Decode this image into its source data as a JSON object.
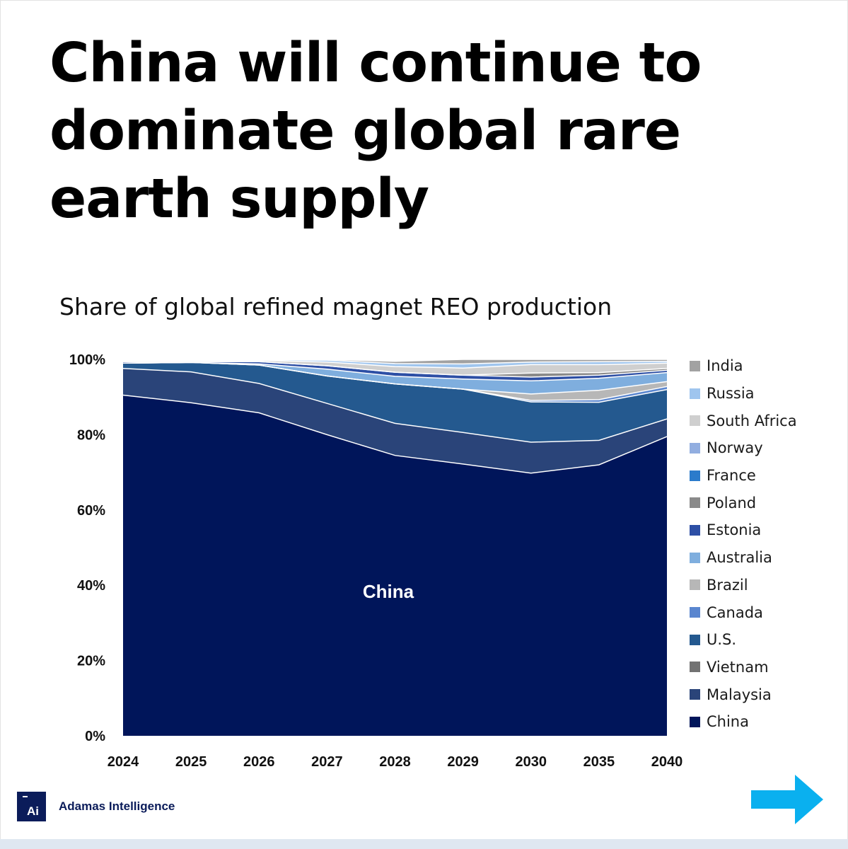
{
  "headline": "China will continue to dominate global rare earth supply",
  "colors": {
    "China": "#00155a",
    "Malaysia": "#2a4479",
    "Vietnam": "#727272",
    "U.S.": "#24598f",
    "Canada": "#5a86cf",
    "Brazil": "#b7b7b7",
    "Australia": "#7faede",
    "Estonia": "#2d4fa5",
    "Poland": "#8a8a8a",
    "France": "#2b7bcb",
    "Norway": "#92aee0",
    "South Africa": "#cfcfcf",
    "Russia": "#9fc5ee",
    "India": "#a2a2a2",
    "arrow": "#0ab0ef",
    "logo": "#0b1c5a"
  },
  "chart_data": {
    "type": "area",
    "stacked": true,
    "percent": true,
    "title": "Share of global refined magnet REO production",
    "xlabel": "",
    "ylabel": "",
    "ylim": [
      0,
      100
    ],
    "yticks": [
      "0%",
      "20%",
      "40%",
      "60%",
      "80%",
      "100%"
    ],
    "grid": false,
    "legend_position": "right",
    "categories": [
      "2024",
      "2025",
      "2026",
      "2027",
      "2028",
      "2029",
      "2030",
      "2035",
      "2040"
    ],
    "annotation": "China",
    "series": [
      {
        "name": "China",
        "values": [
          90.5,
          88.5,
          85.8,
          80.0,
          74.5,
          72.2,
          69.8,
          72.0,
          79.5
        ]
      },
      {
        "name": "Malaysia",
        "values": [
          7.1,
          8.2,
          7.8,
          8.3,
          8.5,
          8.4,
          8.2,
          6.5,
          4.7
        ]
      },
      {
        "name": "Vietnam",
        "values": [
          0,
          0,
          0,
          0,
          0,
          0,
          0,
          0,
          0
        ]
      },
      {
        "name": "U.S.",
        "values": [
          1.4,
          2.5,
          4.9,
          7.3,
          10.5,
          11.5,
          10.7,
          10.1,
          7.8
        ]
      },
      {
        "name": "Canada",
        "values": [
          0,
          0,
          0,
          0,
          0,
          0,
          0.4,
          0.7,
          0.8
        ]
      },
      {
        "name": "Brazil",
        "values": [
          0,
          0,
          0,
          0,
          0,
          0,
          1.7,
          2.5,
          1.3
        ]
      },
      {
        "name": "Australia",
        "values": [
          0,
          0,
          0.3,
          1.8,
          2.0,
          2.7,
          3.5,
          3.2,
          2.4
        ]
      },
      {
        "name": "Estonia",
        "values": [
          0.4,
          0.2,
          0.6,
          0.9,
          1.1,
          1.0,
          1.0,
          0.8,
          0.6
        ]
      },
      {
        "name": "Poland",
        "values": [
          0,
          0,
          0,
          0,
          0,
          0,
          1.1,
          0.7,
          0.5
        ]
      },
      {
        "name": "France",
        "values": [
          0,
          0,
          0,
          0,
          0,
          0,
          0,
          0,
          0
        ]
      },
      {
        "name": "Norway",
        "values": [
          0,
          0,
          0,
          0,
          0,
          0,
          0,
          0,
          0
        ]
      },
      {
        "name": "South Africa",
        "values": [
          0.3,
          0.3,
          0.3,
          1.0,
          1.5,
          1.9,
          2.2,
          2.1,
          1.4
        ]
      },
      {
        "name": "Russia",
        "values": [
          0.2,
          0.2,
          0.2,
          0.5,
          0.8,
          1.1,
          0.7,
          0.8,
          0.5
        ]
      },
      {
        "name": "India",
        "values": [
          0.1,
          0.1,
          0.1,
          0.2,
          0.6,
          1.2,
          0.7,
          0.6,
          0.5
        ]
      }
    ]
  },
  "legend": [
    "India",
    "Russia",
    "South Africa",
    "Norway",
    "France",
    "Poland",
    "Estonia",
    "Australia",
    "Brazil",
    "Canada",
    "U.S.",
    "Vietnam",
    "Malaysia",
    "China"
  ],
  "footer": {
    "brand": "Adamas Intelligence",
    "logo_text": "Ai"
  }
}
